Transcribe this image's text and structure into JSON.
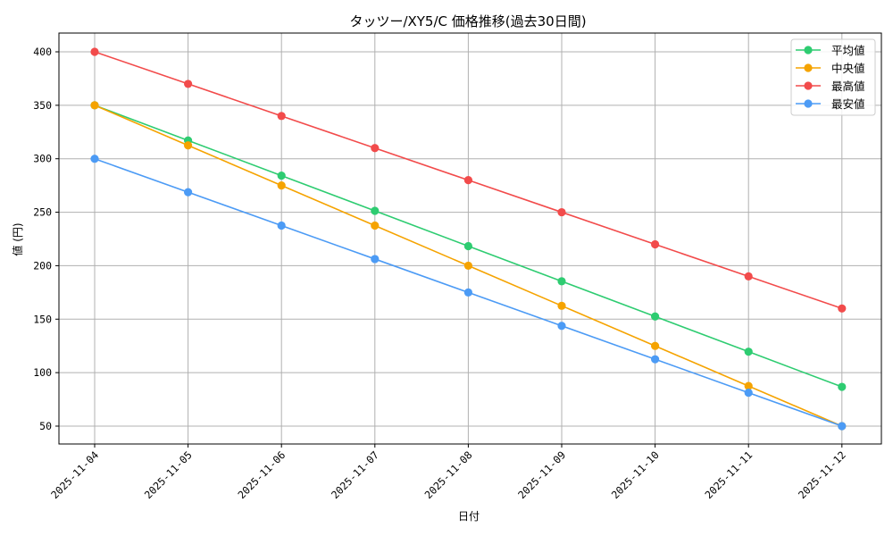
{
  "chart_data": {
    "type": "line",
    "title": "タッツー/XY5/C 価格推移(過去30日間)",
    "xlabel": "日付",
    "ylabel": "値 (円)",
    "x": [
      "2025-11-04",
      "2025-11-05",
      "2025-11-06",
      "2025-11-07",
      "2025-11-08",
      "2025-11-09",
      "2025-11-10",
      "2025-11-11",
      "2025-11-12"
    ],
    "yticks": [
      50,
      100,
      150,
      200,
      250,
      300,
      350,
      400
    ],
    "ylim": [
      33,
      418
    ],
    "grid": true,
    "legend_position": "upper right",
    "series": [
      {
        "name": "平均値",
        "color": "#2ecc71",
        "values": [
          350,
          317.1,
          284.2,
          251.3,
          218.3,
          185.4,
          152.5,
          119.6,
          86.7
        ]
      },
      {
        "name": "中央値",
        "color": "#f5a300",
        "values": [
          350,
          312.5,
          275,
          237.5,
          200,
          162.5,
          125,
          87.5,
          50
        ]
      },
      {
        "name": "最高値",
        "color": "#f24b4b",
        "values": [
          400,
          370,
          340,
          310,
          280,
          250,
          220,
          190,
          160
        ]
      },
      {
        "name": "最安値",
        "color": "#4c9bf5",
        "values": [
          300,
          268.75,
          237.5,
          206.25,
          175,
          143.75,
          112.5,
          81.25,
          50
        ]
      }
    ]
  }
}
